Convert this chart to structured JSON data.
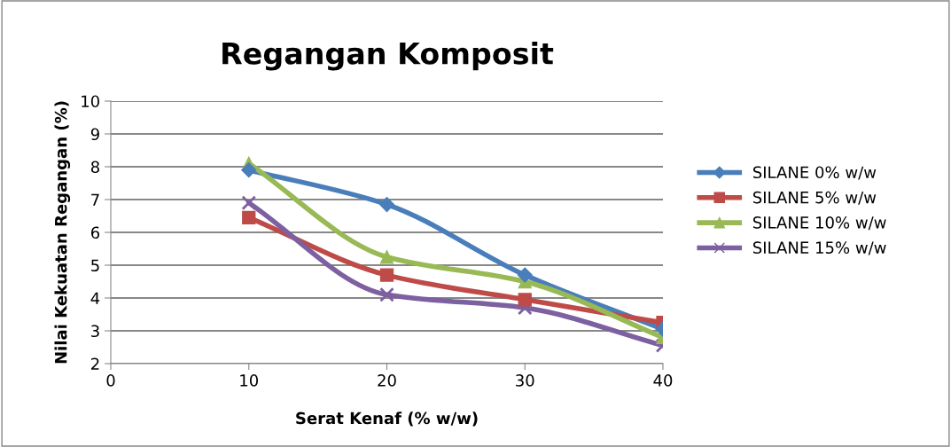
{
  "chart_data": {
    "type": "line",
    "title": "Regangan Komposit",
    "xlabel": "Serat Kenaf (% w/w)",
    "ylabel": "Nilai Kekuatan Regangan (%)",
    "x": [
      10,
      20,
      30,
      40
    ],
    "xlim": [
      0,
      40
    ],
    "xticks": [
      0,
      10,
      20,
      30,
      40
    ],
    "ylim": [
      2,
      10
    ],
    "yticks": [
      2,
      3,
      4,
      5,
      6,
      7,
      8,
      9,
      10
    ],
    "grid": "y",
    "legend": "right",
    "line_style": "solid",
    "series": [
      {
        "name": "SILANE 0% w/w",
        "color": "#4a7ebb",
        "marker": "diamond",
        "values": [
          7.9,
          6.85,
          4.7,
          3.05
        ]
      },
      {
        "name": "SILANE 5% w/w",
        "color": "#be4b48",
        "marker": "square",
        "values": [
          6.45,
          4.7,
          3.95,
          3.25
        ]
      },
      {
        "name": "SILANE 10% w/w",
        "color": "#98b954",
        "marker": "triangle",
        "values": [
          8.1,
          5.25,
          4.5,
          2.8
        ]
      },
      {
        "name": "SILANE 15% w/w",
        "color": "#7d60a0",
        "marker": "cross",
        "values": [
          6.9,
          4.1,
          3.7,
          2.55
        ]
      }
    ]
  }
}
